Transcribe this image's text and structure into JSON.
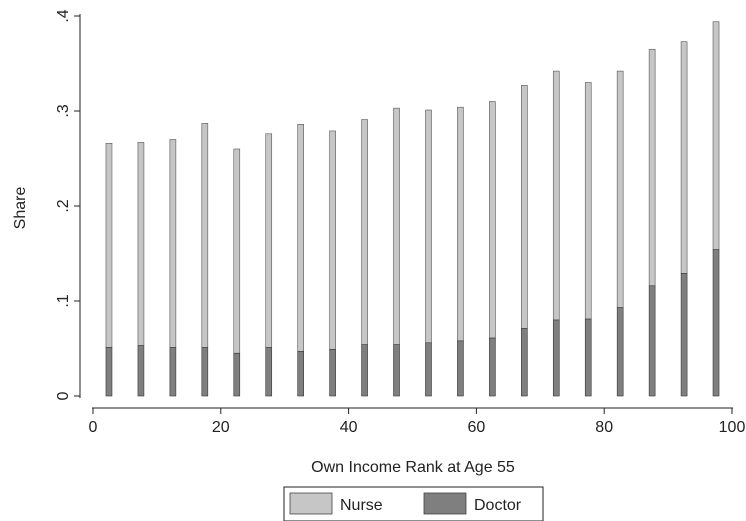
{
  "chart_data": {
    "type": "bar",
    "stacked": true,
    "xlabel": "Own Income Rank at Age 55",
    "ylabel": "Share",
    "xlim": [
      0,
      100
    ],
    "ylim": [
      0,
      0.4
    ],
    "xticks": [
      0,
      20,
      40,
      60,
      80,
      100
    ],
    "xtick_labels": [
      "0",
      "20",
      "40",
      "60",
      "80",
      "100"
    ],
    "yticks": [
      0,
      0.1,
      0.2,
      0.3,
      0.4
    ],
    "ytick_labels": [
      "0",
      ".1",
      ".2",
      ".3",
      ".4"
    ],
    "x": [
      2.5,
      7.5,
      12.5,
      17.5,
      22.5,
      27.5,
      32.5,
      37.5,
      42.5,
      47.5,
      52.5,
      57.5,
      62.5,
      67.5,
      72.5,
      77.5,
      82.5,
      87.5,
      92.5,
      97.5
    ],
    "series": [
      {
        "name": "Doctor",
        "color": "#7f7f7f",
        "values": [
          0.051,
          0.053,
          0.051,
          0.051,
          0.045,
          0.051,
          0.047,
          0.049,
          0.054,
          0.054,
          0.056,
          0.058,
          0.061,
          0.071,
          0.08,
          0.081,
          0.093,
          0.116,
          0.129,
          0.154
        ]
      },
      {
        "name": "Nurse",
        "color": "#c6c6c6",
        "values": [
          0.215,
          0.214,
          0.219,
          0.236,
          0.215,
          0.225,
          0.239,
          0.23,
          0.237,
          0.249,
          0.245,
          0.246,
          0.249,
          0.256,
          0.262,
          0.249,
          0.249,
          0.249,
          0.244,
          0.24
        ]
      }
    ],
    "legend": {
      "position": "bottom",
      "entries": [
        {
          "label": "Nurse",
          "color": "#c6c6c6"
        },
        {
          "label": "Doctor",
          "color": "#7f7f7f"
        }
      ]
    },
    "grid": false
  }
}
